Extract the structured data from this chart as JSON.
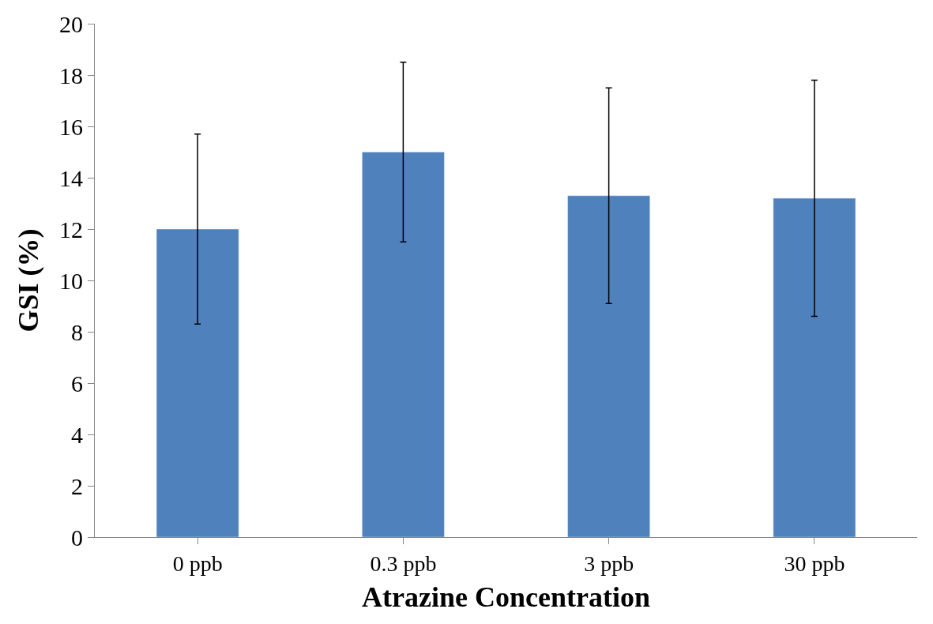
{
  "chart_data": {
    "type": "bar",
    "xlabel": "Atrazine Concentration",
    "ylabel": "GSI (%)",
    "categories": [
      "0 ppb",
      "0.3 ppb",
      "3 ppb",
      "30 ppb"
    ],
    "values": [
      12.0,
      15.0,
      13.3,
      13.2
    ],
    "errors": [
      3.7,
      3.5,
      4.2,
      4.6
    ],
    "color": "#4f81bd",
    "ylim": [
      0,
      20
    ],
    "yticks": [
      0,
      2,
      4,
      6,
      8,
      10,
      12,
      14,
      16,
      18,
      20
    ]
  }
}
